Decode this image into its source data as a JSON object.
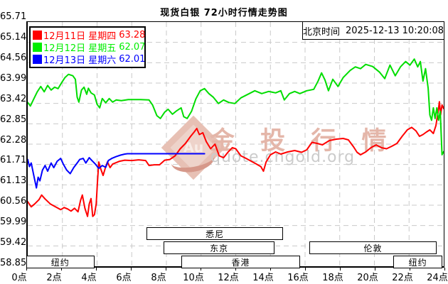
{
  "title": "现货白银 72小时行情走势图",
  "clock": {
    "label": "北京时间",
    "datetime": "2025-12-13 10:20:08"
  },
  "legend": [
    {
      "label": "12月11日 星期四",
      "value": "63.28",
      "color": "#ff0000"
    },
    {
      "label": "12月12日 星期五",
      "value": "62.07",
      "color": "#00ee00"
    },
    {
      "label": "12月13日 星期六",
      "value": "62.01",
      "color": "#0000ff"
    }
  ],
  "watermark": {
    "logo_text": "Au",
    "brand": "金 投 行 情",
    "url": "quote.cngold.org"
  },
  "sessions": [
    {
      "id": "newyork-left",
      "label": "纽约",
      "row": 2,
      "start_h": 0.0,
      "end_h": 3.92
    },
    {
      "id": "sydney",
      "label": "悉尼",
      "row": 0,
      "start_h": 6.94,
      "end_h": 14.82
    },
    {
      "id": "tokyo",
      "label": "东京",
      "row": 1,
      "start_h": 7.92,
      "end_h": 14.33
    },
    {
      "id": "hongkong",
      "label": "香港",
      "row": 2,
      "start_h": 8.94,
      "end_h": 15.8
    },
    {
      "id": "london",
      "label": "伦敦",
      "row": 1,
      "start_h": 16.33,
      "end_h": 23.67
    },
    {
      "id": "newyork-right",
      "label": "纽约",
      "row": 2,
      "start_h": 21.18,
      "end_h": 24.0
    }
  ],
  "chart_data": {
    "type": "line",
    "title": "现货白银 72小时行情走势图",
    "grid": true,
    "grid_color": "#c9c9c9",
    "x_axis": {
      "range_hours": [
        0,
        24
      ],
      "ticks": [
        "0点",
        "2点",
        "4点",
        "6点",
        "8点",
        "10点",
        "12点",
        "14点",
        "16点",
        "18点",
        "20点",
        "22点",
        "24点"
      ]
    },
    "y_axis": {
      "range": [
        58.85,
        65.71
      ],
      "ticks": [
        "65.71",
        "65.14",
        "64.56",
        "63.99",
        "63.42",
        "62.85",
        "62.28",
        "61.71",
        "61.13",
        "60.56",
        "59.99",
        "59.42",
        "58.85"
      ]
    },
    "series": [
      {
        "name": "12月11日 星期四",
        "close": 63.28,
        "color": "#ff0000",
        "points": [
          [
            0,
            60.66
          ],
          [
            0.2,
            60.52
          ],
          [
            0.4,
            60.6
          ],
          [
            0.65,
            60.72
          ],
          [
            0.8,
            60.85
          ],
          [
            1.0,
            60.74
          ],
          [
            1.3,
            60.6
          ],
          [
            1.6,
            60.52
          ],
          [
            1.9,
            60.44
          ],
          [
            2.1,
            60.5
          ],
          [
            2.3,
            60.46
          ],
          [
            2.5,
            60.4
          ],
          [
            2.7,
            60.48
          ],
          [
            2.9,
            60.38
          ],
          [
            3.05,
            60.7
          ],
          [
            3.15,
            60.85
          ],
          [
            3.3,
            60.48
          ],
          [
            3.45,
            60.25
          ],
          [
            3.55,
            60.6
          ],
          [
            3.65,
            60.75
          ],
          [
            3.75,
            60.25
          ],
          [
            3.85,
            60.3
          ],
          [
            3.95,
            60.6
          ],
          [
            4.02,
            61.2
          ],
          [
            4.1,
            61.78
          ],
          [
            4.2,
            61.6
          ],
          [
            4.35,
            61.4
          ],
          [
            4.5,
            61.65
          ],
          [
            4.6,
            61.78
          ],
          [
            4.75,
            61.62
          ],
          [
            4.9,
            61.72
          ],
          [
            5.1,
            61.76
          ],
          [
            5.3,
            61.8
          ],
          [
            5.6,
            61.83
          ],
          [
            6.0,
            61.82
          ],
          [
            6.4,
            61.84
          ],
          [
            6.8,
            61.82
          ],
          [
            7.0,
            61.68
          ],
          [
            7.3,
            61.7
          ],
          [
            7.6,
            61.7
          ],
          [
            7.9,
            61.83
          ],
          [
            8.2,
            61.85
          ],
          [
            8.5,
            61.95
          ],
          [
            8.8,
            62.15
          ],
          [
            9.1,
            62.3
          ],
          [
            9.4,
            62.5
          ],
          [
            9.6,
            62.62
          ],
          [
            9.75,
            62.72
          ],
          [
            9.9,
            62.55
          ],
          [
            10.1,
            62.6
          ],
          [
            10.3,
            62.35
          ],
          [
            10.55,
            62.15
          ],
          [
            10.8,
            62.28
          ],
          [
            11.05,
            61.95
          ],
          [
            11.3,
            61.9
          ],
          [
            11.55,
            62.05
          ],
          [
            11.8,
            62.18
          ],
          [
            12.0,
            62.15
          ],
          [
            12.3,
            61.95
          ],
          [
            12.6,
            61.88
          ],
          [
            12.9,
            61.8
          ],
          [
            13.2,
            61.72
          ],
          [
            13.45,
            61.65
          ],
          [
            13.6,
            61.52
          ],
          [
            13.75,
            61.78
          ],
          [
            14.0,
            61.98
          ],
          [
            14.3,
            62.06
          ],
          [
            14.6,
            62.0
          ],
          [
            15.0,
            62.06
          ],
          [
            15.4,
            62.1
          ],
          [
            15.8,
            62.05
          ],
          [
            16.1,
            62.12
          ],
          [
            16.4,
            62.33
          ],
          [
            16.7,
            62.3
          ],
          [
            17.0,
            62.26
          ],
          [
            17.4,
            62.38
          ],
          [
            17.8,
            62.42
          ],
          [
            18.2,
            62.44
          ],
          [
            18.5,
            62.4
          ],
          [
            18.8,
            62.2
          ],
          [
            19.0,
            62.05
          ],
          [
            19.2,
            61.98
          ],
          [
            19.5,
            62.06
          ],
          [
            19.8,
            62.18
          ],
          [
            20.1,
            62.26
          ],
          [
            20.4,
            62.18
          ],
          [
            20.7,
            62.15
          ],
          [
            21.0,
            62.22
          ],
          [
            21.3,
            62.3
          ],
          [
            21.6,
            62.5
          ],
          [
            21.9,
            62.68
          ],
          [
            22.15,
            62.75
          ],
          [
            22.4,
            62.65
          ],
          [
            22.6,
            62.5
          ],
          [
            22.8,
            62.55
          ],
          [
            23.0,
            62.62
          ],
          [
            23.2,
            62.68
          ],
          [
            23.4,
            62.58
          ],
          [
            23.55,
            62.8
          ],
          [
            23.68,
            63.2
          ],
          [
            23.75,
            63.47
          ],
          [
            23.82,
            63.1
          ],
          [
            23.9,
            63.38
          ],
          [
            24,
            63.28
          ]
        ]
      },
      {
        "name": "12月12日 星期五",
        "close": 62.07,
        "color": "#00dd00",
        "points": [
          [
            0,
            63.45
          ],
          [
            0.15,
            63.35
          ],
          [
            0.35,
            63.55
          ],
          [
            0.55,
            63.75
          ],
          [
            0.75,
            63.9
          ],
          [
            0.95,
            63.75
          ],
          [
            1.15,
            63.93
          ],
          [
            1.35,
            63.8
          ],
          [
            1.55,
            63.88
          ],
          [
            1.75,
            63.84
          ],
          [
            1.95,
            64.0
          ],
          [
            2.15,
            64.15
          ],
          [
            2.35,
            64.24
          ],
          [
            2.6,
            64.2
          ],
          [
            2.75,
            64.1
          ],
          [
            2.85,
            63.6
          ],
          [
            2.95,
            63.46
          ],
          [
            3.1,
            63.8
          ],
          [
            3.25,
            63.88
          ],
          [
            3.4,
            63.68
          ],
          [
            3.5,
            63.85
          ],
          [
            3.65,
            63.72
          ],
          [
            3.85,
            63.66
          ],
          [
            4.0,
            63.4
          ],
          [
            4.15,
            63.3
          ],
          [
            4.3,
            63.56
          ],
          [
            4.5,
            63.44
          ],
          [
            4.7,
            63.56
          ],
          [
            4.9,
            63.46
          ],
          [
            5.1,
            63.52
          ],
          [
            5.4,
            63.5
          ],
          [
            5.8,
            63.53
          ],
          [
            6.5,
            63.53
          ],
          [
            7.0,
            63.52
          ],
          [
            7.2,
            63.38
          ],
          [
            7.45,
            63.08
          ],
          [
            7.65,
            63.0
          ],
          [
            7.9,
            63.18
          ],
          [
            8.1,
            63.26
          ],
          [
            8.35,
            63.12
          ],
          [
            8.6,
            63.22
          ],
          [
            8.85,
            63.3
          ],
          [
            9.0,
            63.05
          ],
          [
            9.2,
            63.0
          ],
          [
            9.45,
            63.2
          ],
          [
            9.7,
            63.55
          ],
          [
            9.95,
            63.78
          ],
          [
            10.2,
            63.84
          ],
          [
            10.45,
            63.7
          ],
          [
            10.7,
            63.6
          ],
          [
            11.0,
            63.42
          ],
          [
            11.3,
            63.52
          ],
          [
            11.6,
            63.45
          ],
          [
            11.95,
            63.42
          ],
          [
            12.3,
            63.58
          ],
          [
            12.7,
            63.68
          ],
          [
            13.1,
            63.78
          ],
          [
            13.5,
            63.7
          ],
          [
            13.9,
            63.76
          ],
          [
            14.3,
            63.72
          ],
          [
            14.6,
            63.78
          ],
          [
            14.8,
            63.52
          ],
          [
            15.1,
            63.7
          ],
          [
            15.4,
            63.76
          ],
          [
            15.7,
            63.7
          ],
          [
            16.1,
            63.78
          ],
          [
            16.5,
            63.82
          ],
          [
            16.75,
            64.05
          ],
          [
            16.95,
            64.28
          ],
          [
            17.15,
            64.08
          ],
          [
            17.35,
            63.78
          ],
          [
            17.6,
            64.1
          ],
          [
            17.9,
            63.9
          ],
          [
            18.2,
            64.15
          ],
          [
            18.6,
            64.35
          ],
          [
            18.9,
            64.45
          ],
          [
            19.2,
            64.4
          ],
          [
            19.5,
            64.52
          ],
          [
            19.9,
            64.46
          ],
          [
            20.3,
            64.3
          ],
          [
            20.6,
            64.12
          ],
          [
            20.9,
            64.5
          ],
          [
            21.2,
            64.2
          ],
          [
            21.5,
            64.45
          ],
          [
            21.8,
            64.6
          ],
          [
            22.05,
            64.5
          ],
          [
            22.3,
            64.67
          ],
          [
            22.5,
            64.45
          ],
          [
            22.65,
            64.6
          ],
          [
            22.8,
            64.05
          ],
          [
            22.95,
            64.4
          ],
          [
            23.1,
            63.85
          ],
          [
            23.2,
            63.1
          ],
          [
            23.3,
            62.95
          ],
          [
            23.4,
            63.3
          ],
          [
            23.5,
            63.0
          ],
          [
            23.6,
            63.3
          ],
          [
            23.7,
            62.95
          ],
          [
            23.8,
            63.2
          ],
          [
            23.9,
            61.98
          ],
          [
            24,
            62.07
          ]
        ]
      },
      {
        "name": "12月13日 星期六",
        "close": 62.01,
        "color": "#0000ff",
        "points": [
          [
            0,
            61.85
          ],
          [
            0.1,
            61.65
          ],
          [
            0.2,
            61.75
          ],
          [
            0.35,
            61.4
          ],
          [
            0.5,
            61.05
          ],
          [
            0.6,
            61.35
          ],
          [
            0.7,
            61.25
          ],
          [
            0.85,
            61.55
          ],
          [
            1.0,
            61.68
          ],
          [
            1.15,
            61.52
          ],
          [
            1.35,
            61.75
          ],
          [
            1.5,
            61.62
          ],
          [
            1.7,
            61.8
          ],
          [
            1.9,
            61.88
          ],
          [
            2.05,
            61.72
          ],
          [
            2.25,
            61.55
          ],
          [
            2.45,
            61.45
          ],
          [
            2.65,
            61.62
          ],
          [
            2.85,
            61.75
          ],
          [
            3.0,
            61.85
          ],
          [
            3.2,
            61.88
          ],
          [
            3.35,
            61.75
          ],
          [
            3.55,
            61.9
          ],
          [
            3.7,
            61.82
          ],
          [
            3.9,
            61.72
          ],
          [
            4.1,
            61.6
          ],
          [
            4.3,
            61.68
          ],
          [
            4.5,
            61.63
          ],
          [
            4.65,
            61.82
          ],
          [
            4.85,
            61.88
          ],
          [
            5.1,
            61.93
          ],
          [
            5.35,
            61.97
          ],
          [
            5.6,
            62.0
          ],
          [
            5.75,
            62.01
          ],
          [
            10.2,
            62.01
          ]
        ]
      }
    ]
  }
}
